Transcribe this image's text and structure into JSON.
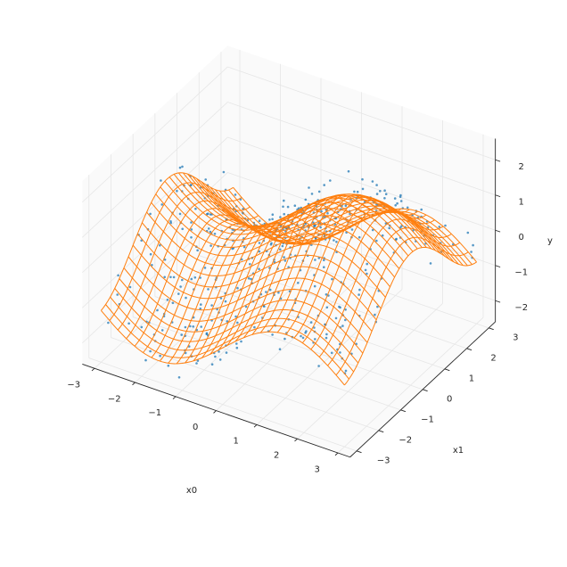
{
  "chart_data": {
    "type": "surface3d",
    "title": "",
    "axes": {
      "x": {
        "label": "x0",
        "range": [
          -3.3,
          3.3
        ],
        "ticks": [
          -3,
          -2,
          -1,
          0,
          1,
          2,
          3
        ]
      },
      "y": {
        "label": "x1",
        "range": [
          -3.3,
          3.3
        ],
        "ticks": [
          -3,
          -2,
          -1,
          0,
          1,
          2,
          3
        ]
      },
      "z": {
        "label": "y",
        "range": [
          -2.6,
          2.6
        ],
        "ticks": [
          -2,
          -1,
          0,
          1,
          2
        ]
      }
    },
    "grid": true,
    "view": {
      "elev_deg": 30,
      "azim_deg": -60
    },
    "surface": {
      "function": "sin(x0) + cos(x1)",
      "x0_range": [
        -3,
        3
      ],
      "x1_range": [
        -3,
        3
      ],
      "resolution": 30,
      "color": "#ff7f0e"
    },
    "scatter": {
      "count": 500,
      "distribution": "uniform in [-3,3]^2, y = sin(x0) + cos(x1) + noise(sd 0.35)",
      "color": "#1f77b4"
    }
  }
}
